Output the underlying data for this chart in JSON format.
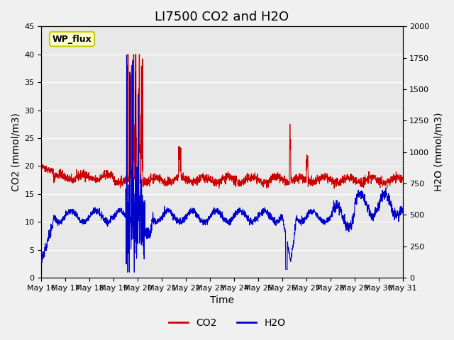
{
  "title": "LI7500 CO2 and H2O",
  "xlabel": "Time",
  "ylabel_left": "CO2 (mmol/m3)",
  "ylabel_right": "H2O (mmol/m3)",
  "ylim_left": [
    0,
    45
  ],
  "ylim_right": [
    0,
    2000
  ],
  "co2_color": "#cc0000",
  "h2o_color": "#0000cc",
  "background_color": "#e8e8e8",
  "plot_bg_color": "#e8e8e8",
  "annotation_text": "WP_flux",
  "annotation_bg": "#ffffcc",
  "annotation_border": "#cccc00",
  "legend_co2": "CO2",
  "legend_h2o": "H2O",
  "xtick_labels": [
    "May 16",
    "May 17",
    "May 18",
    "May 19",
    "May 20",
    "May 21",
    "May 22",
    "May 23",
    "May 24",
    "May 25",
    "May 26",
    "May 27",
    "May 28",
    "May 29",
    "May 30",
    "May 31"
  ],
  "title_fontsize": 13,
  "axis_fontsize": 10,
  "tick_fontsize": 8
}
